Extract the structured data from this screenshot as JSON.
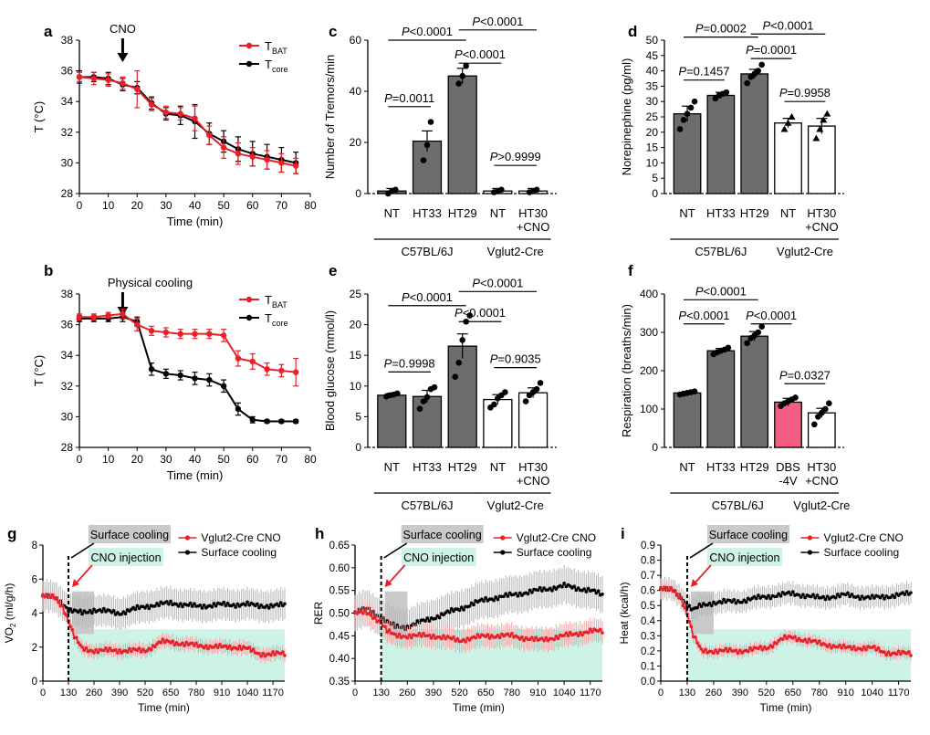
{
  "chart_data": [
    {
      "panel": "a",
      "type": "line",
      "xlabel": "Time (min)",
      "ylabel": "T (°C)",
      "xlim": [
        0,
        80
      ],
      "ylim": [
        28,
        38
      ],
      "xticks": [
        0,
        10,
        20,
        30,
        40,
        50,
        60,
        70,
        80
      ],
      "yticks": [
        28,
        30,
        32,
        34,
        36,
        38
      ],
      "annotation": "CNO",
      "annotation_x": 15,
      "x": [
        0,
        5,
        10,
        15,
        20,
        25,
        30,
        35,
        40,
        45,
        50,
        55,
        60,
        65,
        70,
        75
      ],
      "series": [
        {
          "name": "T",
          "sub": "BAT",
          "color": "#e8202a",
          "values": [
            35.6,
            35.5,
            35.4,
            35.2,
            34.8,
            33.8,
            33.3,
            33.2,
            32.9,
            31.8,
            31.0,
            30.6,
            30.4,
            30.2,
            30.0,
            29.8
          ],
          "err": [
            0.3,
            0.4,
            0.4,
            0.4,
            1.2,
            0.4,
            0.4,
            0.4,
            0.8,
            0.6,
            0.7,
            0.7,
            0.6,
            0.6,
            0.6,
            0.5
          ]
        },
        {
          "name": "T",
          "sub": "core",
          "color": "#000000",
          "values": [
            35.6,
            35.6,
            35.5,
            35.1,
            34.9,
            33.9,
            33.2,
            33.1,
            32.7,
            31.9,
            31.4,
            30.9,
            30.6,
            30.4,
            30.2,
            30.0
          ],
          "err": [
            0.4,
            0.3,
            0.4,
            0.4,
            0.4,
            0.4,
            0.4,
            0.6,
            1.1,
            0.7,
            0.7,
            0.8,
            0.8,
            0.8,
            0.8,
            0.7
          ]
        }
      ]
    },
    {
      "panel": "b",
      "type": "line",
      "xlabel": "Time (min)",
      "ylabel": "T (°C)",
      "xlim": [
        0,
        80
      ],
      "ylim": [
        28,
        38
      ],
      "xticks": [
        0,
        10,
        20,
        30,
        40,
        50,
        60,
        70,
        80
      ],
      "yticks": [
        28,
        30,
        32,
        34,
        36,
        38
      ],
      "annotation": "Physical cooling",
      "annotation_x": 15,
      "x": [
        0,
        5,
        10,
        15,
        20,
        25,
        30,
        35,
        40,
        45,
        50,
        55,
        60,
        65,
        70,
        75
      ],
      "series": [
        {
          "name": "T",
          "sub": "BAT",
          "color": "#e8202a",
          "values": [
            36.5,
            36.5,
            36.6,
            36.7,
            36.0,
            35.6,
            35.5,
            35.4,
            35.4,
            35.4,
            35.3,
            33.8,
            33.6,
            33.1,
            33.0,
            32.9
          ],
          "err": [
            0.2,
            0.2,
            0.2,
            0.3,
            0.4,
            0.3,
            0.3,
            0.3,
            0.3,
            0.3,
            0.4,
            0.5,
            0.5,
            0.4,
            0.4,
            0.9
          ]
        },
        {
          "name": "T",
          "sub": "core",
          "color": "#000000",
          "values": [
            36.4,
            36.4,
            36.4,
            36.5,
            36.2,
            33.1,
            32.8,
            32.7,
            32.5,
            32.4,
            32.0,
            30.5,
            29.8,
            29.7,
            29.7,
            29.7
          ],
          "err": [
            0.2,
            0.2,
            0.2,
            0.3,
            0.3,
            0.4,
            0.3,
            0.3,
            0.4,
            0.4,
            0.4,
            0.4,
            0.2,
            0.1,
            0.1,
            0.1
          ]
        }
      ]
    },
    {
      "panel": "c",
      "type": "bar",
      "ylabel": "Number of Tremors/min",
      "ylim": [
        0,
        60
      ],
      "yticks": [
        0,
        20,
        40,
        60
      ],
      "categories": [
        "NT",
        "HT33",
        "HT29",
        "NT",
        "HT30\n+CNO"
      ],
      "values": [
        1,
        20.5,
        46,
        1,
        1
      ],
      "err": [
        1,
        4,
        3,
        1,
        1
      ],
      "fills": [
        "#6d6d6d",
        "#6d6d6d",
        "#6d6d6d",
        "#ffffff",
        "#ffffff"
      ],
      "points": [
        [
          0,
          1,
          1.5
        ],
        [
          13,
          19,
          28
        ],
        [
          43,
          46,
          50
        ],
        [
          0.5,
          1,
          1.5
        ],
        [
          0.5,
          1,
          1.5
        ]
      ],
      "groups": [
        {
          "label": "C57BL/6J",
          "from": 0,
          "to": 2
        },
        {
          "label": "Vglut2-Cre",
          "from": 3,
          "to": 4
        }
      ],
      "comparisons": [
        {
          "text": "P=0.0011",
          "from": 0,
          "to": 1,
          "y": 34
        },
        {
          "text": "P<0.0001",
          "from": 0,
          "to": 2,
          "y": 60
        },
        {
          "text": "P<0.0001",
          "from": 2,
          "to": 3,
          "y": 51
        },
        {
          "text": "P<0.0001",
          "from": 2,
          "to": 4,
          "y": 64
        },
        {
          "text": "P>0.9999",
          "from": 3,
          "to": 4,
          "y": 11
        }
      ]
    },
    {
      "panel": "d",
      "type": "bar",
      "ylabel": "Norepinephine (pg/ml)",
      "ylim": [
        0,
        50
      ],
      "yticks": [
        0,
        5,
        10,
        15,
        20,
        25,
        30,
        35,
        40,
        45,
        50
      ],
      "categories": [
        "NT",
        "HT33",
        "HT29",
        "NT",
        "HT30\n+CNO"
      ],
      "values": [
        26,
        32,
        39,
        23,
        22
      ],
      "err": [
        2.5,
        1,
        1.5,
        1.5,
        2.5
      ],
      "fills": [
        "#6d6d6d",
        "#6d6d6d",
        "#6d6d6d",
        "#ffffff",
        "#ffffff"
      ],
      "points": [
        [
          21,
          24,
          26,
          28,
          30
        ],
        [
          31,
          32,
          32.5,
          33
        ],
        [
          36,
          38,
          39,
          40,
          42
        ],
        [
          21,
          23,
          25
        ],
        [
          18,
          21,
          24,
          26
        ]
      ],
      "groups": [
        {
          "label": "C57BL/6J",
          "from": 0,
          "to": 2
        },
        {
          "label": "Vglut2-Cre",
          "from": 3,
          "to": 4
        }
      ],
      "comparisons": [
        {
          "text": "P=0.1457",
          "from": 0,
          "to": 1,
          "y": 37
        },
        {
          "text": "P=0.0002",
          "from": 0,
          "to": 2,
          "y": 51
        },
        {
          "text": "P=0.0001",
          "from": 2,
          "to": 3,
          "y": 44
        },
        {
          "text": "P<0.0001",
          "from": 2,
          "to": 4,
          "y": 52
        },
        {
          "text": "P=0.9958",
          "from": 3,
          "to": 4,
          "y": 30
        }
      ]
    },
    {
      "panel": "e",
      "type": "bar",
      "ylabel": "Blood glucose (mmol/l)",
      "ylim": [
        0,
        25
      ],
      "yticks": [
        0,
        5,
        10,
        15,
        20,
        25
      ],
      "categories": [
        "NT",
        "HT33",
        "HT29",
        "NT",
        "HT30\n+CNO"
      ],
      "values": [
        8.5,
        8.3,
        16.5,
        7.8,
        8.9
      ],
      "err": [
        0.3,
        1.0,
        2.0,
        0.8,
        0.8
      ],
      "fills": [
        "#6d6d6d",
        "#6d6d6d",
        "#6d6d6d",
        "#ffffff",
        "#ffffff"
      ],
      "points": [
        [
          8.3,
          8.5,
          8.6,
          8.8
        ],
        [
          6.3,
          7.5,
          8.2,
          9.5,
          9.8
        ],
        [
          11.5,
          13.8,
          17.5,
          20.5,
          21.5
        ],
        [
          6.5,
          7,
          8,
          8.5,
          9
        ],
        [
          7.5,
          8.5,
          9,
          9.5,
          10.5
        ]
      ],
      "groups": [
        {
          "label": "C57BL/6J",
          "from": 0,
          "to": 2
        },
        {
          "label": "Vglut2-Cre",
          "from": 3,
          "to": 4
        }
      ],
      "comparisons": [
        {
          "text": "P=0.9998",
          "from": 0,
          "to": 1,
          "y": 12.3
        },
        {
          "text": "P<0.0001",
          "from": 0,
          "to": 2,
          "y": 23.1
        },
        {
          "text": "P<0.0001",
          "from": 2,
          "to": 3,
          "y": 20.5
        },
        {
          "text": "P<0.0001",
          "from": 2,
          "to": 4,
          "y": 25.4
        },
        {
          "text": "P=0.9035",
          "from": 3,
          "to": 4,
          "y": 13
        }
      ]
    },
    {
      "panel": "f",
      "type": "bar",
      "ylabel": "Respiration (breaths/min)",
      "ylim": [
        0,
        400
      ],
      "yticks": [
        0,
        100,
        200,
        300,
        400
      ],
      "categories": [
        "NT",
        "HT33",
        "HT29",
        "DBS\n-4V",
        "HT30\n+CNO"
      ],
      "values": [
        142,
        252,
        290,
        118,
        90
      ],
      "err": [
        4,
        6,
        12,
        10,
        12
      ],
      "fills": [
        "#6d6d6d",
        "#6d6d6d",
        "#6d6d6d",
        "#f25f83",
        "#ffffff"
      ],
      "points": [
        [
          138,
          140,
          142,
          144,
          146
        ],
        [
          243,
          248,
          252,
          255,
          260
        ],
        [
          272,
          285,
          292,
          300,
          315
        ],
        [
          108,
          115,
          120,
          125,
          130
        ],
        [
          60,
          80,
          90,
          100,
          115
        ]
      ],
      "groups": [
        {
          "label": "C57BL/6J",
          "from": 0,
          "to": 3
        },
        {
          "label": "Vglut2-Cre",
          "from": 4,
          "to": 4
        }
      ],
      "comparisons": [
        {
          "text": "P<0.0001",
          "from": 0,
          "to": 1,
          "y": 322
        },
        {
          "text": "P<0.0001",
          "from": 0,
          "to": 2,
          "y": 385
        },
        {
          "text": "P<0.0001",
          "from": 2,
          "to": 3,
          "y": 322
        },
        {
          "text": "P=0.0327",
          "from": 3,
          "to": 4,
          "y": 166
        }
      ]
    },
    {
      "panel": "g",
      "type": "line",
      "xlabel": "Time (min)",
      "ylabel": "VO",
      "ylabel_sub": "2",
      "ylabel_tail": " (ml/g/h)",
      "ylim": [
        0,
        8
      ],
      "yticks": [
        0,
        2,
        4,
        6,
        8
      ],
      "xlim": [
        0,
        1230
      ],
      "xticks": [
        0,
        130,
        260,
        390,
        520,
        650,
        780,
        910,
        1040,
        1170
      ],
      "cooling_label": "Surface cooling",
      "cno_label": "CNO injection",
      "injection_x": 130,
      "series": [
        {
          "name": "Vglut2-Cre CNO",
          "color": "#e8202a",
          "err": 0.4,
          "kx": [
            0,
            60,
            100,
            130,
            160,
            200,
            260,
            390,
            520,
            600,
            650,
            780,
            910,
            1000,
            1040,
            1100,
            1230
          ],
          "ky": [
            5.0,
            4.9,
            4.4,
            3.6,
            2.6,
            1.9,
            1.8,
            1.8,
            1.8,
            2.3,
            2.3,
            2.1,
            2.0,
            2.0,
            1.9,
            1.6,
            1.6
          ]
        },
        {
          "name": "Surface cooling",
          "color": "#000000",
          "err": 0.9,
          "kx": [
            0,
            60,
            100,
            130,
            160,
            200,
            260,
            390,
            520,
            650,
            780,
            910,
            1040,
            1170,
            1230
          ],
          "ky": [
            5.0,
            4.9,
            4.6,
            4.2,
            4.1,
            4.0,
            4.2,
            4.0,
            4.4,
            4.6,
            4.4,
            4.5,
            4.5,
            4.4,
            4.5
          ]
        }
      ]
    },
    {
      "panel": "h",
      "type": "line",
      "xlabel": "Time (min)",
      "ylabel": "RER",
      "ylim": [
        0.35,
        0.65
      ],
      "yticks": [
        0.35,
        0.4,
        0.45,
        0.5,
        0.55,
        0.6,
        0.65
      ],
      "xlim": [
        0,
        1230
      ],
      "xticks": [
        0,
        130,
        260,
        390,
        520,
        650,
        780,
        910,
        1040,
        1170
      ],
      "xticklabels": [
        "0",
        "130",
        "260",
        "390",
        "520",
        "650",
        "780",
        "910",
        "1040",
        "1170"
      ],
      "cooling_label": "Surface cooling",
      "cno_label": "CNO injection",
      "injection_x": 130,
      "series": [
        {
          "name": "Vglut2-Cre CNO",
          "color": "#e8202a",
          "err": 0.025,
          "kx": [
            0,
            60,
            100,
            130,
            160,
            200,
            260,
            390,
            520,
            650,
            780,
            910,
            1040,
            1170,
            1230
          ],
          "ky": [
            0.5,
            0.5,
            0.49,
            0.48,
            0.46,
            0.45,
            0.45,
            0.45,
            0.44,
            0.45,
            0.45,
            0.44,
            0.45,
            0.46,
            0.46
          ]
        },
        {
          "name": "Surface cooling",
          "color": "#000000",
          "err": 0.04,
          "kx": [
            0,
            60,
            100,
            130,
            160,
            200,
            260,
            390,
            520,
            650,
            780,
            910,
            1040,
            1170,
            1230
          ],
          "ky": [
            0.5,
            0.51,
            0.5,
            0.49,
            0.48,
            0.47,
            0.47,
            0.49,
            0.51,
            0.53,
            0.54,
            0.55,
            0.56,
            0.55,
            0.54
          ]
        }
      ]
    },
    {
      "panel": "i",
      "type": "line",
      "xlabel": "Time (min)",
      "ylabel": "Heat (kcal/h)",
      "ylim": [
        0,
        0.9
      ],
      "yticks": [
        0,
        0.1,
        0.2,
        0.3,
        0.4,
        0.5,
        0.6,
        0.7,
        0.8,
        0.9
      ],
      "xlim": [
        0,
        1230
      ],
      "xticks": [
        0,
        130,
        260,
        390,
        520,
        650,
        780,
        910,
        1040,
        1170
      ],
      "xticklabels": [
        "0",
        "130",
        "260",
        "390",
        "520",
        "650",
        "780",
        "910",
        "1040",
        "1170"
      ],
      "cooling_label": "Surface cooling",
      "cno_label": "CNO injection",
      "injection_x": 130,
      "series": [
        {
          "name": "Vglut2-Cre CNO",
          "color": "#e8202a",
          "err": 0.04,
          "kx": [
            0,
            60,
            100,
            130,
            160,
            200,
            260,
            390,
            520,
            600,
            650,
            780,
            910,
            1040,
            1100,
            1230
          ],
          "ky": [
            0.61,
            0.6,
            0.55,
            0.45,
            0.3,
            0.2,
            0.2,
            0.2,
            0.22,
            0.28,
            0.29,
            0.25,
            0.22,
            0.22,
            0.19,
            0.18
          ]
        },
        {
          "name": "Surface cooling",
          "color": "#000000",
          "err": 0.07,
          "kx": [
            0,
            60,
            100,
            130,
            160,
            200,
            260,
            390,
            520,
            650,
            780,
            910,
            1040,
            1170,
            1230
          ],
          "ky": [
            0.61,
            0.6,
            0.56,
            0.5,
            0.47,
            0.5,
            0.52,
            0.53,
            0.56,
            0.58,
            0.55,
            0.57,
            0.55,
            0.57,
            0.58
          ]
        }
      ]
    }
  ]
}
